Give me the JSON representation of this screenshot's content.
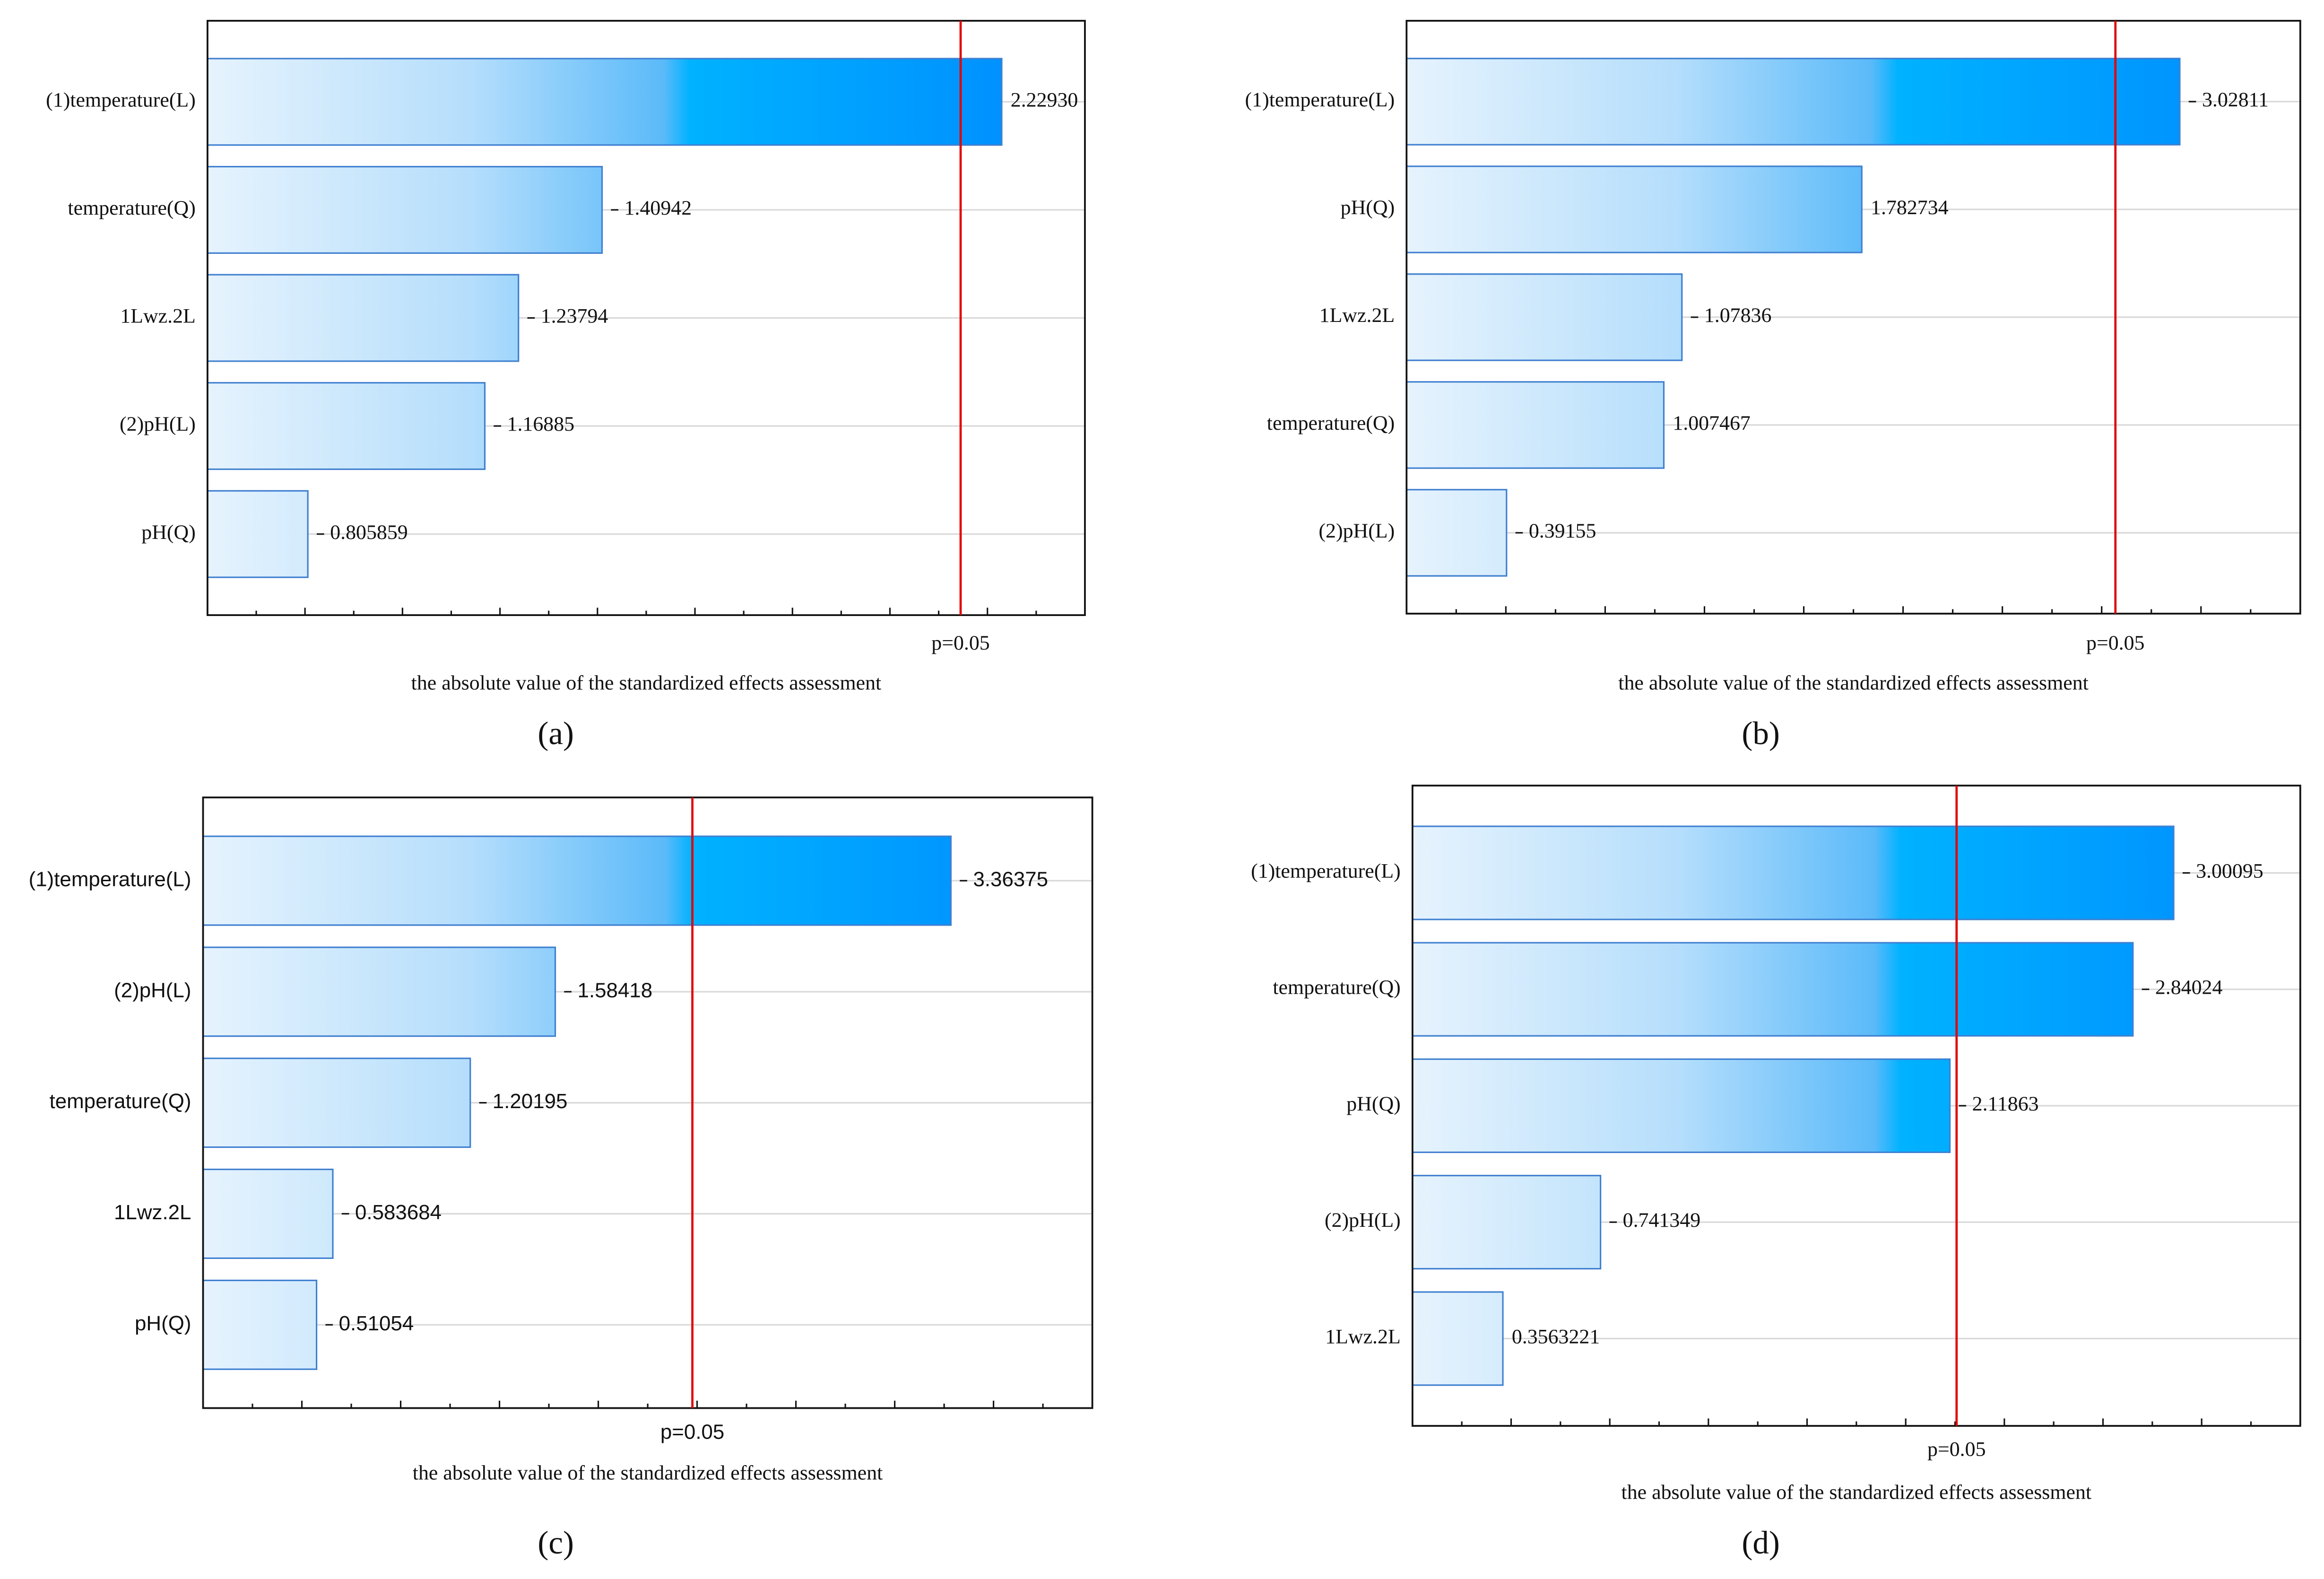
{
  "chart_data": [
    {
      "type": "bar",
      "orientation": "horizontal",
      "panel_label": "(a)",
      "xlabel": "the absolute value of the standardized effects assessment",
      "categories": [
        "(1)temperature(L)",
        "temperature(Q)",
        "1Lwz.2L",
        "(2)pH(L)",
        "pH(Q)"
      ],
      "values": [
        2.2293,
        1.40942,
        1.23794,
        1.16885,
        0.805859
      ],
      "value_labels": [
        "2.22930",
        "1.40942",
        "1.23794",
        "1.16885",
        "0.805859"
      ],
      "xlim": [
        0.6,
        2.4
      ],
      "color": "#0090ff",
      "reference_line": {
        "value": 2.145,
        "label": "p=0.05",
        "color": "#e00000"
      },
      "grid": true
    },
    {
      "type": "bar",
      "orientation": "horizontal",
      "panel_label": "(b)",
      "xlabel": "the absolute value of the standardized effects assessment",
      "categories": [
        "(1)temperature(L)",
        "pH(Q)",
        "1Lwz.2L",
        "temperature(Q)",
        "(2)pH(L)"
      ],
      "values": [
        3.02811,
        1.782734,
        1.07836,
        1.007467,
        0.39155
      ],
      "value_labels": [
        "3.02811",
        "1.782734",
        "1.07836",
        "1.007467",
        "0.39155"
      ],
      "xlim": [
        0,
        3.5
      ],
      "color": "#0090ff",
      "reference_line": {
        "value": 2.776,
        "label": "p=0.05",
        "color": "#e00000"
      },
      "grid": true
    },
    {
      "type": "bar",
      "orientation": "horizontal",
      "panel_label": "(c)",
      "xlabel": "the absolute value of the standardized effects assessment",
      "categories": [
        "(1)temperature(L)",
        "(2)pH(L)",
        "temperature(Q)",
        "1Lwz.2L",
        "pH(Q)"
      ],
      "values": [
        3.36375,
        1.58418,
        1.20195,
        0.583684,
        0.51054
      ],
      "value_labels": [
        "3.36375",
        "1.58418",
        "1.20195",
        "0.583684",
        "0.51054"
      ],
      "xlim": [
        0,
        4
      ],
      "color": "#0090ff",
      "reference_line": {
        "value": 2.201,
        "label": "p=0.05",
        "color": "#e00000"
      },
      "grid": true
    },
    {
      "type": "bar",
      "orientation": "horizontal",
      "panel_label": "(d)",
      "xlabel": "the absolute value of the standardized effects assessment",
      "categories": [
        "(1)temperature(L)",
        "temperature(Q)",
        "pH(Q)",
        "(2)pH(L)",
        "1Lwz.2L"
      ],
      "values": [
        3.00095,
        2.84024,
        2.11863,
        0.741349,
        0.3563221
      ],
      "value_labels": [
        "3.00095",
        "2.84024",
        "2.11863",
        "0.741349",
        "0.3563221"
      ],
      "xlim": [
        0,
        3.5
      ],
      "color": "#0090ff",
      "reference_line": {
        "value": 2.145,
        "label": "p=0.05",
        "color": "#e00000"
      },
      "grid": true
    }
  ]
}
